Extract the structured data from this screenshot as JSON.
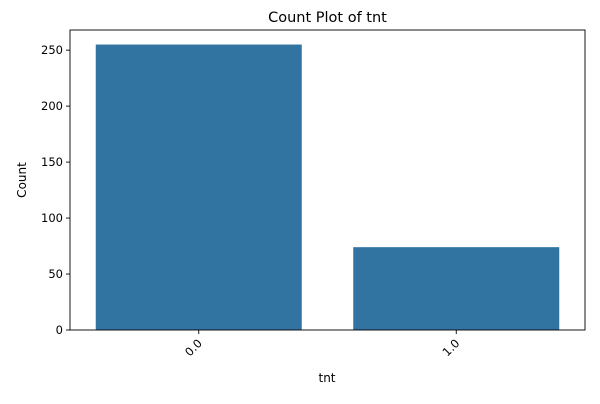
{
  "chart_data": {
    "type": "bar",
    "title": "Count Plot of tnt",
    "xlabel": "tnt",
    "ylabel": "Count",
    "categories": [
      "0.0",
      "1.0"
    ],
    "values": [
      255,
      74
    ],
    "ylim": [
      0,
      268
    ],
    "yticks": [
      0,
      50,
      100,
      150,
      200,
      250
    ],
    "bar_color": "#3274a1",
    "grid": false,
    "legend": "none"
  }
}
